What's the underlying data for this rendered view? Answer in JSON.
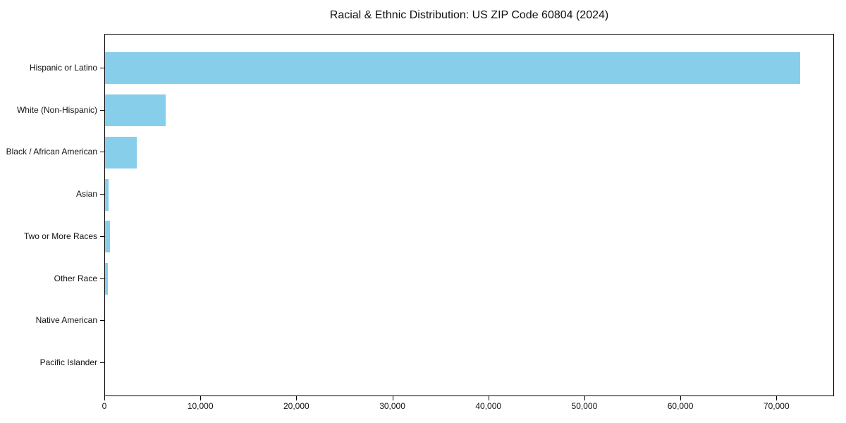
{
  "chart_data": {
    "type": "bar",
    "orientation": "horizontal",
    "title": "Racial & Ethnic Distribution: US ZIP Code 60804 (2024)",
    "categories": [
      "Hispanic or Latino",
      "White (Non-Hispanic)",
      "Black / African American",
      "Asian",
      "Two or More Races",
      "Other Race",
      "Native American",
      "Pacific Islander"
    ],
    "values": [
      72400,
      6300,
      3300,
      370,
      480,
      300,
      0,
      0
    ],
    "bar_color": "#87CEEB",
    "xlabel": "",
    "ylabel": "",
    "xlim": [
      0,
      76000
    ],
    "xticks": [
      0,
      10000,
      20000,
      30000,
      40000,
      50000,
      60000,
      70000
    ],
    "xtick_labels": [
      "0",
      "10,000",
      "20,000",
      "30,000",
      "40,000",
      "50,000",
      "60,000",
      "70,000"
    ],
    "grid": false,
    "legend": null,
    "text_color": "#111111",
    "axis_color": "#000000",
    "background_color": "#ffffff"
  }
}
